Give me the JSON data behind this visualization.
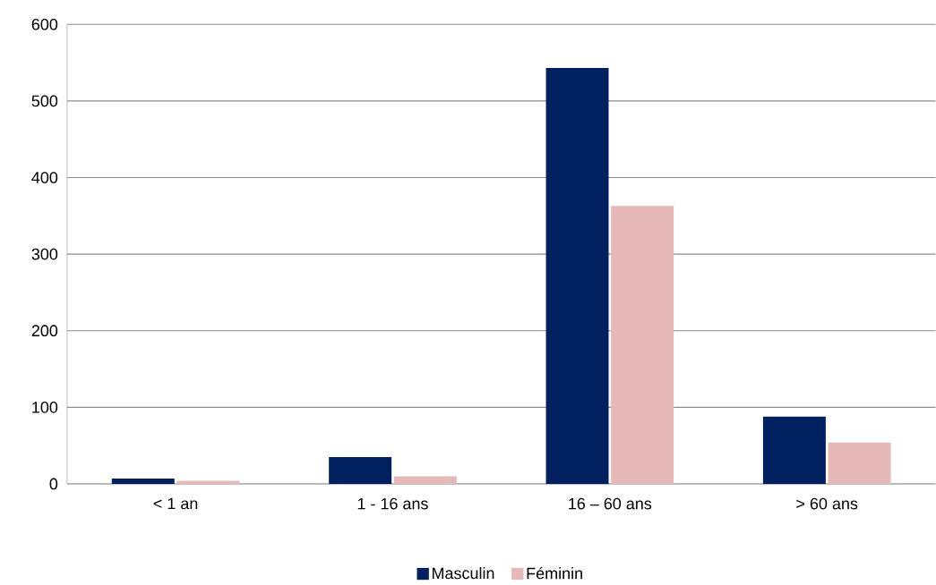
{
  "chart_data": {
    "type": "bar",
    "categories": [
      "< 1 an",
      "1 - 16 ans",
      "16 – 60 ans",
      "> 60 ans"
    ],
    "series": [
      {
        "name": "Masculin",
        "color": "#002060",
        "values": [
          7,
          35,
          543,
          88
        ]
      },
      {
        "name": "Féminin",
        "color": "#e6b9b8",
        "values": [
          4,
          10,
          363,
          54
        ]
      }
    ],
    "ylim": [
      0,
      600
    ],
    "yticks": [
      0,
      100,
      200,
      300,
      400,
      500,
      600
    ],
    "grid": "y",
    "legend": "bottom"
  }
}
